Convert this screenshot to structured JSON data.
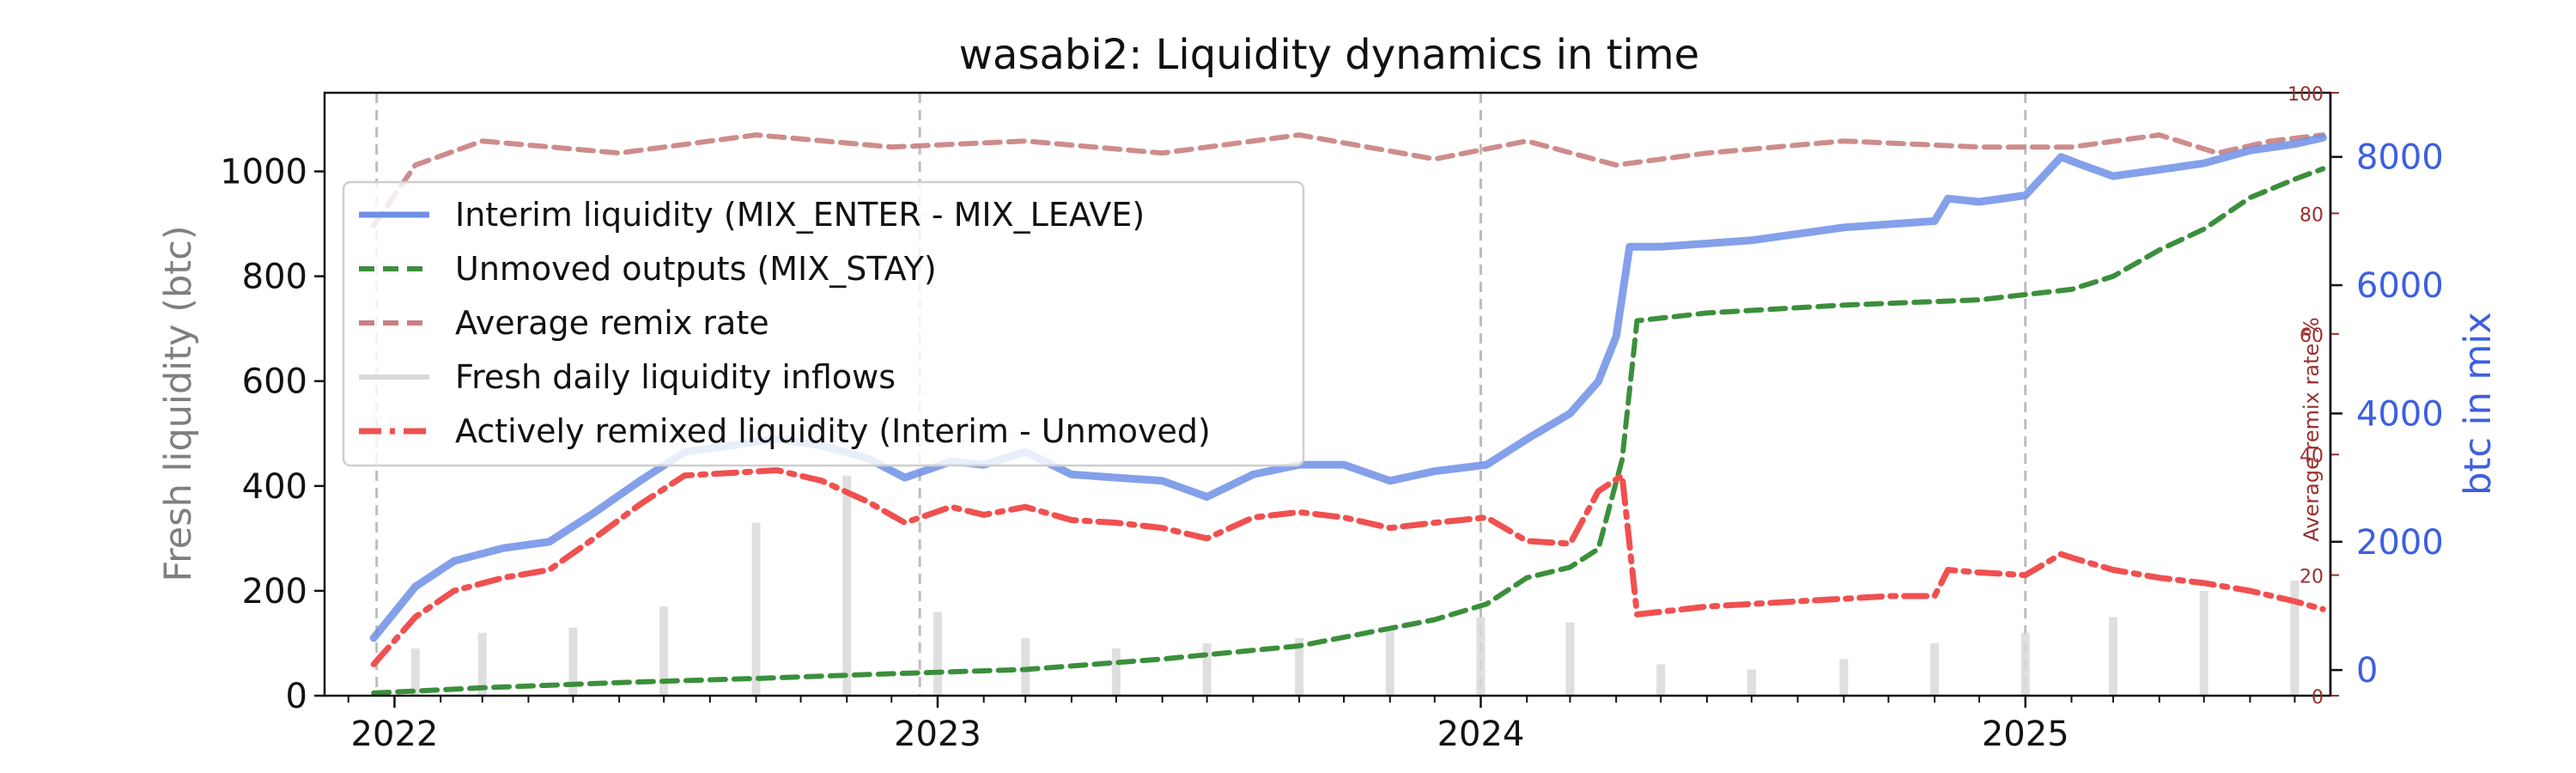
{
  "chart_data": {
    "type": "line",
    "title": "wasabi2: Liquidity dynamics in time",
    "xlabel": "",
    "ylabel": "Fresh liquidity (btc)",
    "ylabel_remix": "Average remix rate %",
    "ylabel_mix": "btc in mix",
    "xlim": [
      "2021-11-15",
      "2025-07-25"
    ],
    "ylim": [
      0,
      1150
    ],
    "ylim_remix": [
      0,
      100
    ],
    "ylim_mix": [
      -400,
      9000
    ],
    "x_ticks": [
      {
        "date": "2022-01-01",
        "label": "2022"
      },
      {
        "date": "2023-01-01",
        "label": "2023"
      },
      {
        "date": "2024-01-01",
        "label": "2024"
      },
      {
        "date": "2025-01-01",
        "label": "2025"
      }
    ],
    "y_ticks": [
      0,
      200,
      400,
      600,
      800,
      1000
    ],
    "y_ticks_remix": [
      0,
      20,
      40,
      60,
      80,
      100
    ],
    "y_ticks_mix": [
      0,
      2000,
      4000,
      6000,
      8000
    ],
    "legend_position": "upper-left",
    "grid": false,
    "vlines": [
      "2021-12-20",
      "2022-12-20",
      "2024-01-01",
      "2025-01-01"
    ],
    "colors": {
      "interim": "#6f8fe6",
      "unmoved": "#3b8f3b",
      "remix": "#c98080",
      "inflows": "#d9d9d9",
      "remixed": "#f05050",
      "right_axis": "#3d5fe0",
      "remix_axis": "#9b2f2f"
    },
    "series": [
      {
        "name": "Interim liquidity (MIX_ENTER - MIX_LEAVE)",
        "axis": "btc in mix",
        "style": "solid",
        "x": [
          "2021-12-18",
          "2022-01-15",
          "2022-02-10",
          "2022-03-15",
          "2022-04-15",
          "2022-05-15",
          "2022-06-15",
          "2022-07-15",
          "2022-08-15",
          "2022-09-15",
          "2022-10-15",
          "2022-11-15",
          "2022-12-10",
          "2023-01-10",
          "2023-02-01",
          "2023-03-01",
          "2023-04-01",
          "2023-05-01",
          "2023-06-01",
          "2023-07-01",
          "2023-08-01",
          "2023-09-01",
          "2023-10-01",
          "2023-11-01",
          "2023-12-01",
          "2024-01-05",
          "2024-02-01",
          "2024-03-01",
          "2024-03-20",
          "2024-04-01",
          "2024-04-10",
          "2024-05-01",
          "2024-06-01",
          "2024-07-01",
          "2024-08-01",
          "2024-09-01",
          "2024-10-01",
          "2024-11-01",
          "2024-11-10",
          "2024-12-01",
          "2025-01-01",
          "2025-01-25",
          "2025-02-05",
          "2025-03-01",
          "2025-04-01",
          "2025-05-01",
          "2025-06-01",
          "2025-07-01",
          "2025-07-20"
        ],
        "values": [
          500,
          1300,
          1700,
          1900,
          2000,
          2450,
          2950,
          3400,
          3500,
          3600,
          3500,
          3300,
          3000,
          3250,
          3200,
          3400,
          3050,
          3000,
          2950,
          2700,
          3050,
          3200,
          3200,
          2950,
          3100,
          3200,
          3600,
          4000,
          4500,
          5200,
          6600,
          6600,
          6650,
          6700,
          6800,
          6900,
          6950,
          7000,
          7350,
          7300,
          7400,
          8000,
          7900,
          7700,
          7800,
          7900,
          8100,
          8200,
          8300
        ]
      },
      {
        "name": "Unmoved outputs (MIX_STAY)",
        "axis": "Fresh liquidity (btc)",
        "style": "dashed",
        "x": [
          "2021-12-18",
          "2022-03-01",
          "2022-06-01",
          "2022-09-01",
          "2022-12-01",
          "2023-03-01",
          "2023-06-01",
          "2023-09-01",
          "2023-12-01",
          "2024-01-05",
          "2024-02-01",
          "2024-03-01",
          "2024-03-20",
          "2024-04-05",
          "2024-04-15",
          "2024-06-01",
          "2024-09-01",
          "2024-12-01",
          "2025-01-01",
          "2025-02-01",
          "2025-03-01",
          "2025-04-01",
          "2025-05-01",
          "2025-06-01",
          "2025-07-01",
          "2025-07-20"
        ],
        "values": [
          5,
          15,
          25,
          33,
          42,
          50,
          70,
          95,
          145,
          175,
          225,
          245,
          280,
          450,
          715,
          730,
          745,
          755,
          765,
          775,
          800,
          850,
          890,
          950,
          985,
          1005
        ]
      },
      {
        "name": "Average remix rate",
        "axis": "Average remix rate %",
        "style": "dashed",
        "x": [
          "2021-12-18",
          "2022-01-15",
          "2022-03-01",
          "2022-06-01",
          "2022-09-01",
          "2022-12-01",
          "2023-03-01",
          "2023-06-01",
          "2023-09-01",
          "2023-12-01",
          "2024-02-01",
          "2024-04-01",
          "2024-06-01",
          "2024-09-01",
          "2024-12-01",
          "2025-02-01",
          "2025-04-01",
          "2025-05-10",
          "2025-06-15",
          "2025-07-20"
        ],
        "values": [
          78,
          88,
          92,
          90,
          93,
          91,
          92,
          90,
          93,
          89,
          92,
          88,
          90,
          92,
          91,
          91,
          93,
          90,
          92,
          93
        ]
      },
      {
        "name": "Fresh daily liquidity inflows",
        "axis": "Fresh liquidity (btc)",
        "style": "bars",
        "x": [
          "2022-01-15",
          "2022-03-01",
          "2022-05-01",
          "2022-07-01",
          "2022-09-01",
          "2022-11-01",
          "2023-01-01",
          "2023-03-01",
          "2023-05-01",
          "2023-07-01",
          "2023-09-01",
          "2023-11-01",
          "2024-01-01",
          "2024-03-01",
          "2024-05-01",
          "2024-07-01",
          "2024-09-01",
          "2024-11-01",
          "2025-01-01",
          "2025-03-01",
          "2025-05-01",
          "2025-07-01"
        ],
        "values": [
          90,
          120,
          130,
          170,
          330,
          420,
          160,
          110,
          90,
          100,
          110,
          130,
          150,
          140,
          60,
          50,
          70,
          100,
          120,
          150,
          200,
          220
        ]
      },
      {
        "name": "Actively remixed liquidity (Interim - Unmoved)",
        "axis": "Fresh liquidity (btc)",
        "style": "dashdot",
        "x": [
          "2021-12-18",
          "2022-01-15",
          "2022-02-10",
          "2022-03-15",
          "2022-04-15",
          "2022-05-15",
          "2022-06-15",
          "2022-07-15",
          "2022-08-15",
          "2022-09-15",
          "2022-10-15",
          "2022-11-15",
          "2022-12-10",
          "2023-01-10",
          "2023-02-01",
          "2023-03-01",
          "2023-04-01",
          "2023-05-01",
          "2023-06-01",
          "2023-07-01",
          "2023-08-01",
          "2023-09-01",
          "2023-10-01",
          "2023-11-01",
          "2023-12-01",
          "2024-01-05",
          "2024-02-01",
          "2024-03-01",
          "2024-03-20",
          "2024-04-05",
          "2024-04-15",
          "2024-05-01",
          "2024-06-01",
          "2024-07-01",
          "2024-08-01",
          "2024-09-01",
          "2024-10-01",
          "2024-11-01",
          "2024-11-10",
          "2024-12-01",
          "2025-01-01",
          "2025-01-25",
          "2025-02-05",
          "2025-03-01",
          "2025-04-01",
          "2025-05-01",
          "2025-06-01",
          "2025-07-01",
          "2025-07-20"
        ],
        "values": [
          60,
          150,
          200,
          225,
          240,
          300,
          365,
          420,
          425,
          430,
          410,
          370,
          330,
          360,
          345,
          360,
          335,
          330,
          320,
          300,
          340,
          350,
          340,
          320,
          330,
          340,
          295,
          290,
          390,
          420,
          155,
          160,
          170,
          175,
          180,
          185,
          190,
          190,
          240,
          235,
          230,
          270,
          260,
          240,
          225,
          215,
          200,
          180,
          165
        ]
      }
    ]
  }
}
